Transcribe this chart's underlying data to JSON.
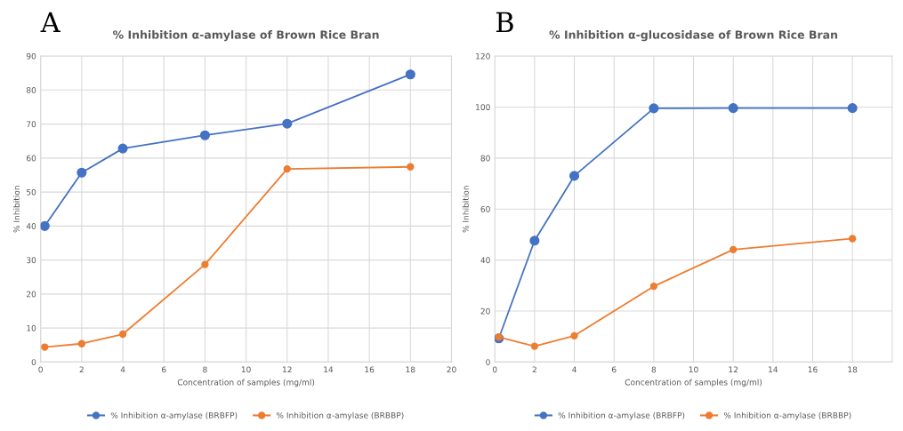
{
  "chart_data": [
    {
      "type": "line",
      "title": "% Inhibition α-amylase of Brown Rice Bran",
      "xlabel": "Concentration of samples (mg/ml)",
      "ylabel": "% Inhibition",
      "annotations": [
        "A"
      ],
      "x": [
        0.2,
        2,
        4,
        8,
        12,
        18
      ],
      "series": [
        {
          "name": "% Inhibition α-amylase (BRBFP)",
          "color": "#4472c4",
          "values": [
            40,
            55.7,
            62.8,
            66.7,
            70.1,
            84.6
          ]
        },
        {
          "name": "% Inhibition α-amylase (BRBBP)",
          "color": "#ed7d31",
          "values": [
            4.4,
            5.4,
            8.2,
            28.7,
            56.8,
            57.4
          ]
        }
      ],
      "xlim": [
        0,
        20
      ],
      "xticks": [
        0,
        2,
        4,
        6,
        8,
        10,
        12,
        14,
        16,
        18,
        20
      ],
      "ylim": [
        0,
        90
      ],
      "yticks": [
        0,
        10,
        20,
        30,
        40,
        50,
        60,
        70,
        80,
        90
      ],
      "grid": true,
      "legend": "bottom",
      "marker": "circle",
      "line_style": "solid"
    },
    {
      "type": "line",
      "title": "% Inhibition α-glucosidase of Brown Rice Bran",
      "xlabel": "Concentration of samples (mg/ml)",
      "ylabel": "% Inhibition",
      "annotations": [
        "B"
      ],
      "x": [
        0.2,
        2,
        4,
        8,
        12,
        18
      ],
      "series": [
        {
          "name": "% Inhibition α-amylase (BRBFP)",
          "color": "#4472c4",
          "values": [
            9.3,
            47.6,
            73,
            99.5,
            99.6,
            99.6
          ]
        },
        {
          "name": "% Inhibition α-amylase (BRBBP)",
          "color": "#ed7d31",
          "values": [
            9.8,
            6.2,
            10.3,
            29.7,
            44.1,
            48.4
          ]
        }
      ],
      "xlim": [
        0,
        20
      ],
      "xticks": [
        0,
        2,
        4,
        6,
        8,
        10,
        12,
        14,
        16,
        18
      ],
      "ylim": [
        0,
        120
      ],
      "yticks": [
        0,
        20,
        40,
        60,
        80,
        100,
        120
      ],
      "grid": true,
      "legend": "bottom",
      "marker": "circle",
      "line_style": "solid"
    }
  ]
}
